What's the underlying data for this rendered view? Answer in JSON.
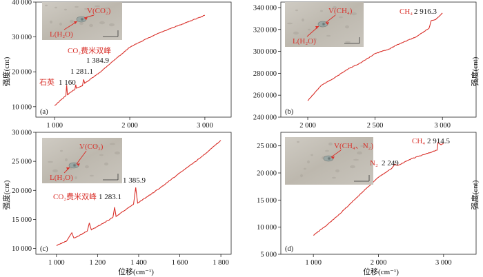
{
  "figure": {
    "ylabel": "强度(cnt)",
    "xlabel": "位移(cm⁻¹)",
    "line_color": "#d9302a",
    "annotation_color": "#d9302a"
  },
  "chart_data": [
    {
      "panel": "(a)",
      "type": "line",
      "xlim": [
        750,
        3350
      ],
      "ylim": [
        7000,
        40000
      ],
      "xticks": [
        "1 000",
        "2 000",
        "3 000"
      ],
      "yticks": [
        "10 000",
        "20 000",
        "30 000",
        "40 000"
      ],
      "series": [
        {
          "x": [
            1000,
            1150,
            1160,
            1170,
            1270,
            1281.1,
            1290,
            1370,
            1384.9,
            1400,
            1600,
            1800,
            2000,
            2100,
            2400,
            2700,
            3000
          ],
          "y": [
            10300,
            13200,
            16200,
            13400,
            15000,
            16300,
            15300,
            16000,
            17800,
            16700,
            19800,
            23500,
            27000,
            28200,
            31200,
            33700,
            36200
          ]
        }
      ],
      "annotations": [
        {
          "text": "石英",
          "red": true
        },
        {
          "text": "1 160"
        },
        {
          "text": "1 281.1"
        },
        {
          "text": "CO₂费米双峰",
          "red": true
        },
        {
          "text": "1 384.9"
        }
      ],
      "inset": {
        "vapor": "V(CO₂)",
        "liquid": "L(H₂O)"
      }
    },
    {
      "panel": "(b)",
      "type": "line",
      "xlim": [
        1800,
        3250
      ],
      "ylim": [
        240000,
        345000
      ],
      "xticks": [
        "2 000",
        "2 500",
        "3 000"
      ],
      "yticks": [
        "240 000",
        "260 000",
        "280 000",
        "300 000",
        "320 000",
        "340 000"
      ],
      "series": [
        {
          "x": [
            2000,
            2100,
            2200,
            2300,
            2400,
            2500,
            2600,
            2700,
            2800,
            2900,
            2916.3,
            2950,
            3000
          ],
          "y": [
            255000,
            269000,
            276000,
            284000,
            290000,
            298000,
            302000,
            308000,
            313000,
            321000,
            328000,
            329000,
            335000
          ]
        }
      ],
      "annotations": [
        {
          "text": "CH₄",
          "red": true
        },
        {
          "text": "2 916.3"
        }
      ],
      "inset": {
        "vapor": "V(CH₄)",
        "liquid": "L(H₂O)"
      }
    },
    {
      "panel": "(c)",
      "type": "line",
      "xlim": [
        900,
        1850
      ],
      "ylim": [
        9000,
        30000
      ],
      "xticks": [
        "1 000",
        "1 200",
        "1 400",
        "1 600",
        "1 800"
      ],
      "yticks": [
        "10 000",
        "15 000",
        "20 000",
        "25 000",
        "30 000"
      ],
      "series": [
        {
          "x": [
            1000,
            1050,
            1075,
            1085,
            1100,
            1150,
            1160,
            1170,
            1250,
            1275,
            1283.1,
            1290,
            1350,
            1375,
            1385.9,
            1395,
            1500,
            1600,
            1700,
            1800
          ],
          "y": [
            10500,
            11300,
            12700,
            11800,
            12000,
            13000,
            14400,
            13200,
            14800,
            15400,
            17100,
            15500,
            17000,
            17600,
            20500,
            17800,
            20300,
            23000,
            25600,
            28600
          ]
        }
      ],
      "annotations": [
        {
          "text": "CO₂费米双峰",
          "red": true
        },
        {
          "text": "1 283.1"
        },
        {
          "text": "1 385.9"
        }
      ],
      "inset": {
        "vapor": "V(CO₂)",
        "liquid": "L(H₂O)"
      }
    },
    {
      "panel": "(d)",
      "type": "line",
      "xlim": [
        500,
        3500
      ],
      "ylim": [
        5000,
        27500
      ],
      "xticks": [
        "1 000",
        "2 000",
        "3 000"
      ],
      "yticks": [
        "5 000",
        "10 000",
        "15 000",
        "20 000",
        "25 000"
      ],
      "series": [
        {
          "x": [
            1000,
            1200,
            1400,
            1600,
            1800,
            2000,
            2200,
            2249,
            2300,
            2500,
            2700,
            2900,
            2914.5,
            2960,
            3000
          ],
          "y": [
            8500,
            10300,
            12400,
            14700,
            17000,
            19200,
            20800,
            21600,
            21400,
            22600,
            23400,
            24200,
            25600,
            25200,
            25400
          ]
        }
      ],
      "annotations": [
        {
          "text": "CH₄",
          "red": true
        },
        {
          "text": "2 914.5"
        },
        {
          "text": "N₂",
          "red": true
        },
        {
          "text": "2 249"
        }
      ],
      "inset": {
        "vapor": "V(CH₄、N₂)",
        "liquid": ""
      }
    }
  ]
}
